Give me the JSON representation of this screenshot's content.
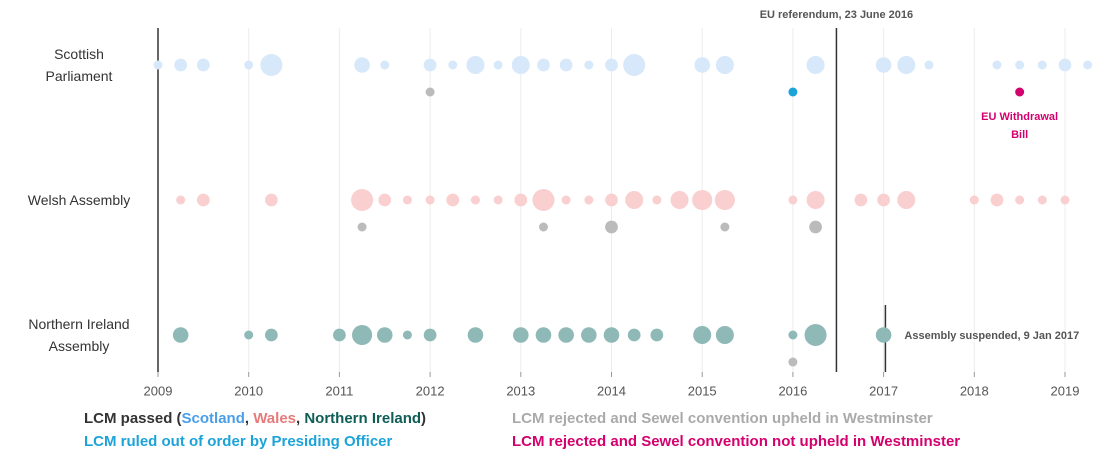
{
  "chart_data": {
    "type": "scatter",
    "categories": [
      "Scottish Parliament",
      "Welsh Assembly",
      "Northern Ireland Assembly"
    ],
    "xlim": [
      2009,
      2019.5
    ],
    "xticks": [
      2009,
      2010,
      2011,
      2012,
      2013,
      2014,
      2015,
      2016,
      2017,
      2018,
      2019
    ],
    "grid": true,
    "legend": {
      "prefix": "LCM passed (",
      "separator": ", ",
      "suffix": ")"
    },
    "series": [
      {
        "name": "Scotland",
        "color": "#d6e8fa",
        "label_color": "#4a9ee8",
        "x": [
          2009,
          2009.25,
          2009.5,
          2010,
          2010.25,
          2011.25,
          2011.5,
          2012,
          2012.25,
          2012.5,
          2012.75,
          2013,
          2013.25,
          2013.5,
          2013.75,
          2014,
          2014.25,
          2015,
          2015.25,
          2016.25,
          2017,
          2017.25,
          2017.5,
          2018.25,
          2018.5,
          2018.75,
          2019,
          2019.25
        ],
        "y": [
          "Scottish Parliament",
          "Scottish Parliament",
          "Scottish Parliament",
          "Scottish Parliament",
          "Scottish Parliament",
          "Scottish Parliament",
          "Scottish Parliament",
          "Scottish Parliament",
          "Scottish Parliament",
          "Scottish Parliament",
          "Scottish Parliament",
          "Scottish Parliament",
          "Scottish Parliament",
          "Scottish Parliament",
          "Scottish Parliament",
          "Scottish Parliament",
          "Scottish Parliament",
          "Scottish Parliament",
          "Scottish Parliament",
          "Scottish Parliament",
          "Scottish Parliament",
          "Scottish Parliament",
          "Scottish Parliament",
          "Scottish Parliament",
          "Scottish Parliament",
          "Scottish Parliament",
          "Scottish Parliament",
          "Scottish Parliament"
        ],
        "sizes": [
          1,
          2,
          2,
          1,
          6,
          3,
          1,
          2,
          1,
          4,
          1,
          4,
          2,
          2,
          1,
          2,
          6,
          3,
          4,
          4,
          3,
          4,
          1,
          1,
          1,
          1,
          2,
          1
        ]
      },
      {
        "name": "Wales",
        "color": "#f9cfcf",
        "label_color": "#e87a7a",
        "x": [
          2009.25,
          2009.5,
          2010.25,
          2011.25,
          2011.5,
          2011.75,
          2012,
          2012.25,
          2012.5,
          2012.75,
          2013,
          2013.25,
          2013.5,
          2013.75,
          2014,
          2014.25,
          2014.5,
          2014.75,
          2015,
          2015.25,
          2016,
          2016.25,
          2016.75,
          2017,
          2017.25,
          2018,
          2018.25,
          2018.5,
          2018.75,
          2019
        ],
        "y": [
          "Welsh Assembly",
          "Welsh Assembly",
          "Welsh Assembly",
          "Welsh Assembly",
          "Welsh Assembly",
          "Welsh Assembly",
          "Welsh Assembly",
          "Welsh Assembly",
          "Welsh Assembly",
          "Welsh Assembly",
          "Welsh Assembly",
          "Welsh Assembly",
          "Welsh Assembly",
          "Welsh Assembly",
          "Welsh Assembly",
          "Welsh Assembly",
          "Welsh Assembly",
          "Welsh Assembly",
          "Welsh Assembly",
          "Welsh Assembly",
          "Welsh Assembly",
          "Welsh Assembly",
          "Welsh Assembly",
          "Welsh Assembly",
          "Welsh Assembly",
          "Welsh Assembly",
          "Welsh Assembly",
          "Welsh Assembly",
          "Welsh Assembly",
          "Welsh Assembly"
        ],
        "sizes": [
          1,
          2,
          2,
          6,
          2,
          1,
          1,
          2,
          1,
          1,
          2,
          6,
          1,
          1,
          2,
          4,
          1,
          4,
          5,
          5,
          1,
          4,
          2,
          2,
          4,
          1,
          2,
          1,
          1,
          1
        ]
      },
      {
        "name": "Northern Ireland",
        "color": "#8fb9b7",
        "label_color": "#0e5e55",
        "x": [
          2009.25,
          2010,
          2010.25,
          2011,
          2011.25,
          2011.5,
          2011.75,
          2012,
          2012.5,
          2013,
          2013.25,
          2013.5,
          2013.75,
          2014,
          2014.25,
          2014.5,
          2015,
          2015.25,
          2016,
          2016.25,
          2017
        ],
        "y": [
          "Northern Ireland Assembly",
          "Northern Ireland Assembly",
          "Northern Ireland Assembly",
          "Northern Ireland Assembly",
          "Northern Ireland Assembly",
          "Northern Ireland Assembly",
          "Northern Ireland Assembly",
          "Northern Ireland Assembly",
          "Northern Ireland Assembly",
          "Northern Ireland Assembly",
          "Northern Ireland Assembly",
          "Northern Ireland Assembly",
          "Northern Ireland Assembly",
          "Northern Ireland Assembly",
          "Northern Ireland Assembly",
          "Northern Ireland Assembly",
          "Northern Ireland Assembly",
          "Northern Ireland Assembly",
          "Northern Ireland Assembly",
          "Northern Ireland Assembly",
          "Northern Ireland Assembly"
        ],
        "sizes": [
          3,
          1,
          2,
          2,
          5,
          3,
          1,
          2,
          3,
          3,
          3,
          3,
          3,
          3,
          2,
          2,
          4,
          4,
          1,
          6,
          3
        ]
      },
      {
        "name": "LCM rejected and Sewel convention upheld in Westminster",
        "color": "#bbbbbb",
        "label_color": "#aaaaaa",
        "x": [
          2012,
          2011.25,
          2013.25,
          2014,
          2015.25,
          2016.25,
          2016
        ],
        "y": [
          "Scottish Parliament",
          "Welsh Assembly",
          "Welsh Assembly",
          "Welsh Assembly",
          "Welsh Assembly",
          "Welsh Assembly",
          "Northern Ireland Assembly"
        ],
        "sizes": [
          1,
          1,
          1,
          2,
          1,
          2,
          1
        ]
      },
      {
        "name": "LCM ruled out of order by Presiding Officer",
        "color": "#1ca3d8",
        "label_color": "#1ca3d8",
        "x": [
          2016
        ],
        "y": [
          "Scottish Parliament"
        ],
        "sizes": [
          1
        ]
      },
      {
        "name": "LCM rejected and Sewel convention not upheld in Westminster",
        "color": "#d4006e",
        "label_color": "#d4006e",
        "x": [
          2018.5
        ],
        "y": [
          "Scottish Parliament"
        ],
        "sizes": [
          1
        ]
      }
    ],
    "annotations": [
      {
        "text": "EU referendum, 23 June 2016",
        "x": 2016.48,
        "color": "#333333"
      },
      {
        "text": "Assembly suspended, 9 Jan 2017",
        "x": 2017.02,
        "color": "#0e5e55"
      },
      {
        "text": "EU Withdrawal Bill",
        "x": 2018.5,
        "color": "#d4006e"
      }
    ]
  }
}
